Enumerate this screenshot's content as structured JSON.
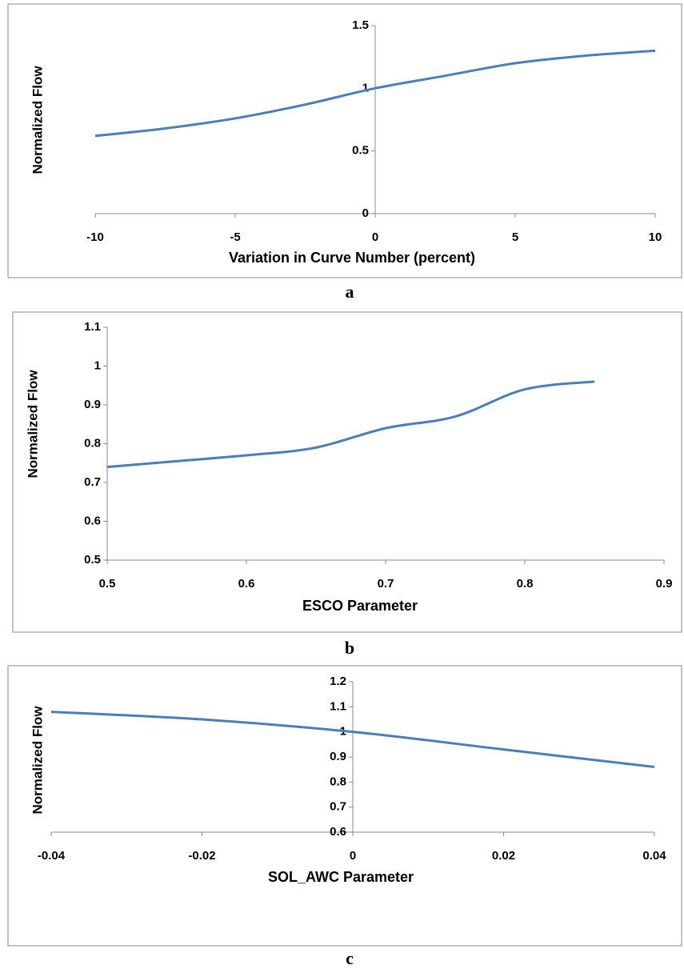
{
  "chart_data": [
    {
      "type": "line",
      "caption": "a",
      "xlabel": "Variation in Curve Number (percent)",
      "ylabel": "Normalized Flow",
      "x": [
        -10,
        -7.5,
        -5,
        -2.5,
        0,
        2.5,
        5,
        7.5,
        10
      ],
      "values": [
        0.62,
        0.68,
        0.76,
        0.87,
        1.0,
        1.1,
        1.2,
        1.26,
        1.3
      ],
      "color": "#4a7ebb",
      "xlim": [
        -10,
        10
      ],
      "xticks": [
        -10,
        -5,
        0,
        5,
        10
      ],
      "ylim": [
        0,
        1.5
      ],
      "yticks": [
        0,
        0.5,
        1,
        1.5
      ]
    },
    {
      "type": "line",
      "caption": "b",
      "xlabel": "ESCO Parameter",
      "ylabel": "Normalized Flow",
      "x": [
        0.5,
        0.55,
        0.6,
        0.65,
        0.7,
        0.75,
        0.8,
        0.85
      ],
      "values": [
        0.74,
        0.755,
        0.77,
        0.79,
        0.84,
        0.87,
        0.94,
        0.96
      ],
      "color": "#4a7ebb",
      "xlim": [
        0.5,
        0.9
      ],
      "xticks": [
        0.5,
        0.6,
        0.7,
        0.8,
        0.9
      ],
      "ylim": [
        0.5,
        1.1
      ],
      "yticks": [
        0.5,
        0.6,
        0.7,
        0.8,
        0.9,
        1,
        1.1
      ]
    },
    {
      "type": "line",
      "caption": "c",
      "xlabel": "SOL_AWC Parameter",
      "ylabel": "Normalized Flow",
      "x": [
        -0.04,
        -0.02,
        0,
        0.02,
        0.04
      ],
      "values": [
        1.08,
        1.05,
        1.0,
        0.93,
        0.86
      ],
      "color": "#4a7ebb",
      "xlim": [
        -0.04,
        0.04
      ],
      "xticks": [
        -0.04,
        -0.02,
        0,
        0.02,
        0.04
      ],
      "ylim": [
        0.6,
        1.2
      ],
      "yticks": [
        0.6,
        0.7,
        0.8,
        0.9,
        1,
        1.1,
        1.2
      ]
    }
  ]
}
